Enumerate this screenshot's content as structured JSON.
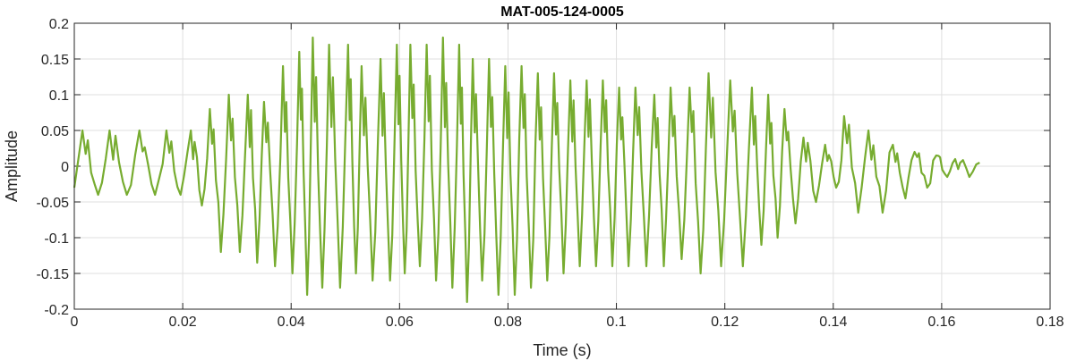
{
  "chart_data": {
    "type": "line",
    "title": "MAT-005-124-0005",
    "xlabel": "Time (s)",
    "ylabel": "Amplitude",
    "xlim": [
      0,
      0.18
    ],
    "ylim": [
      -0.2,
      0.2
    ],
    "xticks": [
      0,
      0.02,
      0.04,
      0.06,
      0.08,
      0.1,
      0.12,
      0.14,
      0.16,
      0.18
    ],
    "xtick_labels": [
      "0",
      "0.02",
      "0.04",
      "0.06",
      "0.08",
      "0.1",
      "0.12",
      "0.14",
      "0.16",
      "0.18"
    ],
    "yticks": [
      0.2,
      0.15,
      0.1,
      0.05,
      0,
      -0.05,
      -0.1,
      -0.15,
      -0.2
    ],
    "ytick_labels": [
      "0.2",
      "0.15",
      "0.1",
      "0.05",
      "0",
      "-0.05",
      "-0.1",
      "-0.15",
      "-0.2"
    ],
    "grid": true,
    "line_color": "#77ac30",
    "series": [
      {
        "x_start": 0,
        "x_end": 0.167,
        "peaks": [
          [
            0.0015,
            0.05,
            -0.04
          ],
          [
            0.0065,
            0.05,
            -0.04
          ],
          [
            0.012,
            0.05,
            -0.04
          ],
          [
            0.017,
            0.05,
            -0.04
          ],
          [
            0.0215,
            0.05,
            -0.055
          ],
          [
            0.025,
            0.08,
            -0.12
          ],
          [
            0.0285,
            0.1,
            -0.12
          ],
          [
            0.032,
            0.1,
            -0.135
          ],
          [
            0.035,
            0.09,
            -0.14
          ],
          [
            0.0385,
            0.14,
            -0.15
          ],
          [
            0.0415,
            0.16,
            -0.18
          ],
          [
            0.044,
            0.18,
            -0.17
          ],
          [
            0.047,
            0.17,
            -0.17
          ],
          [
            0.0505,
            0.17,
            -0.15
          ],
          [
            0.053,
            0.14,
            -0.16
          ],
          [
            0.0565,
            0.15,
            -0.16
          ],
          [
            0.0595,
            0.17,
            -0.15
          ],
          [
            0.062,
            0.17,
            -0.14
          ],
          [
            0.065,
            0.17,
            -0.16
          ],
          [
            0.068,
            0.18,
            -0.17
          ],
          [
            0.071,
            0.17,
            -0.19
          ],
          [
            0.0735,
            0.15,
            -0.16
          ],
          [
            0.0765,
            0.15,
            -0.18
          ],
          [
            0.0795,
            0.14,
            -0.18
          ],
          [
            0.0825,
            0.14,
            -0.17
          ],
          [
            0.0855,
            0.13,
            -0.16
          ],
          [
            0.0885,
            0.13,
            -0.15
          ],
          [
            0.0915,
            0.12,
            -0.14
          ],
          [
            0.0945,
            0.12,
            -0.14
          ],
          [
            0.0975,
            0.12,
            -0.14
          ],
          [
            0.1005,
            0.11,
            -0.14
          ],
          [
            0.1035,
            0.11,
            -0.14
          ],
          [
            0.107,
            0.1,
            -0.14
          ],
          [
            0.11,
            0.11,
            -0.13
          ],
          [
            0.1135,
            0.11,
            -0.15
          ],
          [
            0.117,
            0.13,
            -0.14
          ],
          [
            0.121,
            0.12,
            -0.14
          ],
          [
            0.125,
            0.11,
            -0.11
          ],
          [
            0.128,
            0.1,
            -0.1
          ],
          [
            0.131,
            0.08,
            -0.08
          ],
          [
            0.1345,
            0.04,
            -0.05
          ],
          [
            0.1385,
            0.03,
            -0.03
          ],
          [
            0.142,
            0.07,
            -0.065
          ],
          [
            0.1465,
            0.05,
            -0.065
          ],
          [
            0.151,
            0.03,
            -0.045
          ],
          [
            0.155,
            0.02,
            -0.03
          ],
          [
            0.159,
            0.015,
            -0.015
          ],
          [
            0.1625,
            0.01,
            -0.015
          ]
        ]
      }
    ]
  }
}
